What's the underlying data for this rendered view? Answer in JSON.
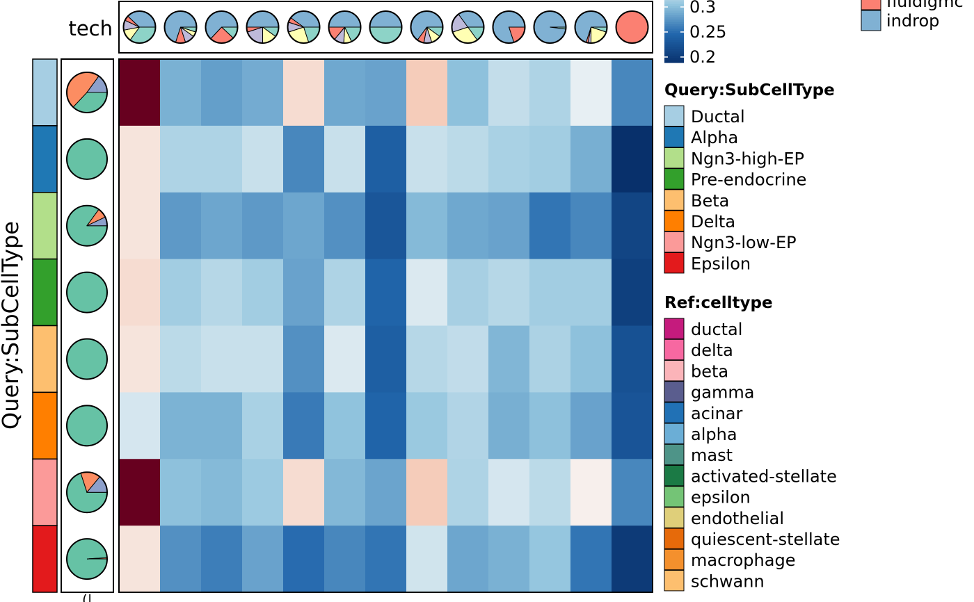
{
  "chart_data": {
    "type": "heatmap",
    "title": "",
    "ylabel": "Query:SubCellType",
    "top_annotation": {
      "label": "tech",
      "pie_colors": [
        "#8dd3c7",
        "#ffffb3",
        "#bebada",
        "#fb8072",
        "#80b1d3"
      ],
      "pie_slices": [
        [
          0.35,
          0.12,
          0.1,
          0.05,
          0.38
        ],
        [
          0.05,
          0.05,
          0.1,
          0.1,
          0.7
        ],
        [
          0.12,
          0,
          0,
          0.25,
          0.63
        ],
        [
          0.1,
          0.15,
          0.2,
          0.05,
          0.5
        ],
        [
          0.2,
          0.25,
          0.1,
          0.05,
          0.4
        ],
        [
          0.18,
          0.08,
          0.1,
          0.14,
          0.5
        ],
        [
          0.5,
          0,
          0,
          0,
          0.5
        ],
        [
          0.1,
          0.1,
          0.08,
          0.07,
          0.65
        ],
        [
          0.15,
          0.3,
          0.2,
          0,
          0.35
        ],
        [
          0,
          0,
          0,
          0.2,
          0.8
        ],
        [
          0.02,
          0,
          0,
          0,
          0.98
        ],
        [
          0.05,
          0.2,
          0.03,
          0.02,
          0.7
        ],
        [
          0,
          0,
          0,
          1,
          0
        ]
      ]
    },
    "row_annotation": {
      "pie_colors": [
        "#66c2a5",
        "#fc8d62",
        "#8da0cb"
      ],
      "pie_slices": [
        [
          0.37,
          0.48,
          0.15
        ],
        [
          1,
          0,
          0
        ],
        [
          0.85,
          0.08,
          0.07
        ],
        [
          1,
          0,
          0
        ],
        [
          1,
          0,
          0
        ],
        [
          1,
          0,
          0
        ],
        [
          0.7,
          0.16,
          0.14
        ],
        [
          0.99,
          0.01,
          0
        ]
      ]
    },
    "rows": [
      "Ductal",
      "Alpha",
      "Ngn3-high-EP",
      "Pre-endocrine",
      "Beta",
      "Delta",
      "Ngn3-low-EP",
      "Epsilon"
    ],
    "row_colors": [
      "#a6cee3",
      "#1f78b4",
      "#b2df8a",
      "#33a02c",
      "#fdbf6f",
      "#ff7f00",
      "#fb9a99",
      "#e31a1c"
    ],
    "n_cols": 13,
    "color_scale": {
      "min": 0.2,
      "max": 0.36,
      "ticks": [
        "0.3",
        "0.25",
        "0.2"
      ]
    },
    "values": [
      [
        0.46,
        0.293,
        0.283,
        0.29,
        0.36,
        0.288,
        0.285,
        0.37,
        0.302,
        0.323,
        0.315,
        0.337,
        0.27
      ],
      [
        0.355,
        0.315,
        0.315,
        0.325,
        0.27,
        0.325,
        0.245,
        0.325,
        0.32,
        0.313,
        0.31,
        0.292,
        0.2
      ],
      [
        0.355,
        0.28,
        0.287,
        0.28,
        0.287,
        0.275,
        0.237,
        0.298,
        0.288,
        0.285,
        0.26,
        0.27,
        0.22
      ],
      [
        0.36,
        0.31,
        0.318,
        0.31,
        0.285,
        0.315,
        0.25,
        0.332,
        0.312,
        0.318,
        0.31,
        0.31,
        0.215
      ],
      [
        0.355,
        0.32,
        0.325,
        0.325,
        0.275,
        0.332,
        0.245,
        0.318,
        0.322,
        0.296,
        0.314,
        0.302,
        0.232
      ],
      [
        0.33,
        0.294,
        0.294,
        0.313,
        0.263,
        0.303,
        0.25,
        0.307,
        0.316,
        0.292,
        0.302,
        0.285,
        0.235
      ],
      [
        0.46,
        0.302,
        0.298,
        0.308,
        0.36,
        0.297,
        0.286,
        0.37,
        0.315,
        0.33,
        0.32,
        0.348,
        0.27
      ],
      [
        0.355,
        0.275,
        0.265,
        0.285,
        0.255,
        0.27,
        0.26,
        0.328,
        0.287,
        0.293,
        0.305,
        0.26,
        0.21
      ]
    ],
    "legends": {
      "tech_partial": [
        "indrop"
      ],
      "tech_partial_colors": [
        "#fb8072",
        "#80b1d3"
      ],
      "tech_clipped_text": "fluidigmc",
      "query_title": "Query:SubCellType",
      "query_items": [
        "Ductal",
        "Alpha",
        "Ngn3-high-EP",
        "Pre-endocrine",
        "Beta",
        "Delta",
        "Ngn3-low-EP",
        "Epsilon"
      ],
      "query_colors": [
        "#a6cee3",
        "#1f78b4",
        "#b2df8a",
        "#33a02c",
        "#fdbf6f",
        "#ff7f00",
        "#fb9a99",
        "#e31a1c"
      ],
      "ref_title": "Ref:celltype",
      "ref_items": [
        "ductal",
        "delta",
        "beta",
        "gamma",
        "acinar",
        "alpha",
        "mast",
        "activated-stellate",
        "epsilon",
        "endothelial",
        "quiescent-stellate",
        "macrophage",
        "schwann"
      ],
      "ref_colors": [
        "#c51b7d",
        "#f768a1",
        "#fbb4b9",
        "#5a5d8e",
        "#2171b5",
        "#6baed6",
        "#4e9488",
        "#1b7a45",
        "#74c476",
        "#dfcf7a",
        "#e66a0a",
        "#f4902d",
        "#fdbf6f"
      ]
    },
    "grid": false
  }
}
